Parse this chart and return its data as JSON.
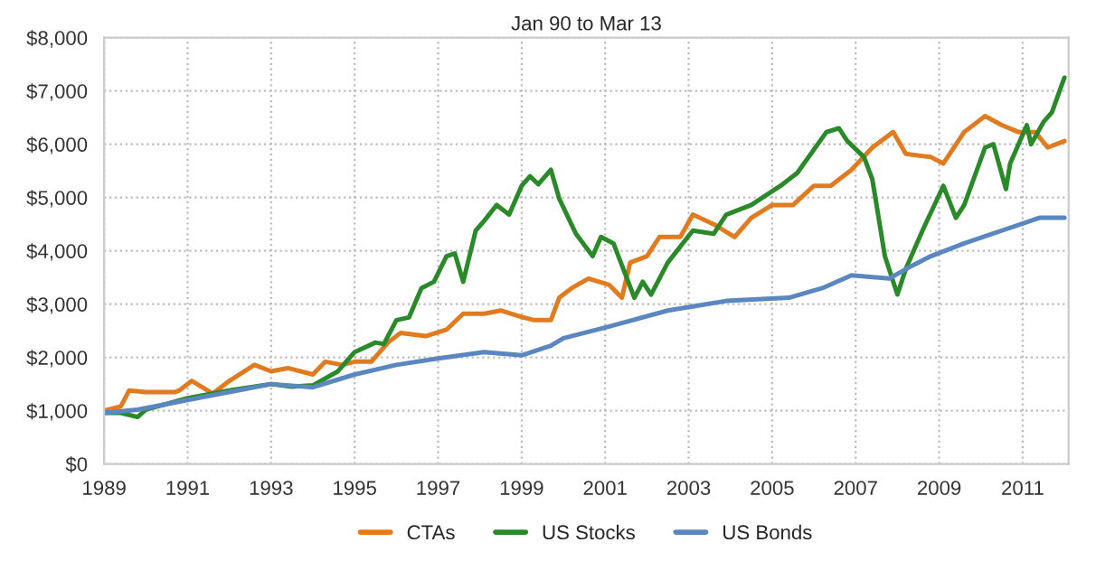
{
  "chart_data": {
    "type": "line",
    "title": "Jan 90 to Mar 13",
    "xlim": [
      1989,
      2012.1
    ],
    "xticks": [
      1989,
      1991,
      1993,
      1995,
      1997,
      1999,
      2001,
      2003,
      2005,
      2007,
      2009,
      2011
    ],
    "ylim": [
      0,
      8000
    ],
    "yticks": [
      {
        "value": 0,
        "label": "$0"
      },
      {
        "value": 1000,
        "label": "$1,000"
      },
      {
        "value": 2000,
        "label": "$2,000"
      },
      {
        "value": 3000,
        "label": "$3,000"
      },
      {
        "value": 4000,
        "label": "$4,000"
      },
      {
        "value": 5000,
        "label": "$5,000"
      },
      {
        "value": 6000,
        "label": "$6,000"
      },
      {
        "value": 7000,
        "label": "$7,000"
      },
      {
        "value": 8000,
        "label": "$8,000"
      }
    ],
    "grid": true,
    "legend": "bottom",
    "line_style": "solid",
    "marker": "none",
    "series": [
      {
        "name": "CTAs",
        "color": "#e07b20",
        "x": [
          1989,
          1989.4,
          1989.6,
          1990.0,
          1990.7,
          1990.8,
          1991.1,
          1991.6,
          1992.0,
          1992.6,
          1993.0,
          1993.4,
          1994.0,
          1994.3,
          1994.7,
          1995.0,
          1995.4,
          1995.8,
          1996.1,
          1996.7,
          1997.2,
          1997.6,
          1998.1,
          1998.5,
          1999.0,
          1999.3,
          1999.7,
          1999.9,
          2000.2,
          2000.6,
          2001.1,
          2001.4,
          2001.6,
          2002.0,
          2002.3,
          2002.8,
          2003.1,
          2003.6,
          2004.1,
          2004.5,
          2005.0,
          2005.5,
          2006.0,
          2006.4,
          2006.9,
          2007.4,
          2007.9,
          2008.2,
          2008.8,
          2009.1,
          2009.6,
          2010.1,
          2010.5,
          2010.9,
          2011.3,
          2011.6,
          2012.0
        ],
        "values": [
          1000,
          1080,
          1380,
          1350,
          1350,
          1380,
          1560,
          1320,
          1560,
          1860,
          1740,
          1800,
          1680,
          1920,
          1860,
          1920,
          1920,
          2280,
          2460,
          2400,
          2520,
          2820,
          2820,
          2880,
          2760,
          2700,
          2700,
          3120,
          3300,
          3480,
          3360,
          3120,
          3780,
          3900,
          4260,
          4260,
          4680,
          4500,
          4260,
          4620,
          4860,
          4860,
          5220,
          5220,
          5520,
          5940,
          6230,
          5820,
          5760,
          5640,
          6230,
          6530,
          6360,
          6230,
          6230,
          5940,
          6060
        ]
      },
      {
        "name": "US Stocks",
        "color": "#2a8a2a",
        "x": [
          1989,
          1989.4,
          1989.8,
          1990.0,
          1991.0,
          1992.0,
          1993.0,
          1993.5,
          1994.0,
          1994.6,
          1995.0,
          1995.5,
          1995.7,
          1996.0,
          1996.3,
          1996.6,
          1996.9,
          1997.2,
          1997.4,
          1997.6,
          1997.9,
          1998.1,
          1998.4,
          1998.7,
          1999.0,
          1999.2,
          1999.4,
          1999.7,
          1999.9,
          2000.3,
          2000.7,
          2000.9,
          2001.2,
          2001.7,
          2001.9,
          2002.1,
          2002.5,
          2003.1,
          2003.6,
          2003.9,
          2004.5,
          2005.2,
          2005.6,
          2006.3,
          2006.6,
          2006.8,
          2007.2,
          2007.4,
          2007.7,
          2008.0,
          2008.2,
          2008.6,
          2009.1,
          2009.4,
          2009.6,
          2010.1,
          2010.3,
          2010.6,
          2010.7,
          2011.1,
          2011.2,
          2011.5,
          2011.7,
          2012.0
        ],
        "values": [
          960,
          960,
          880,
          1020,
          1235,
          1380,
          1500,
          1450,
          1475,
          1740,
          2100,
          2280,
          2250,
          2700,
          2750,
          3300,
          3420,
          3900,
          3950,
          3420,
          4380,
          4560,
          4860,
          4680,
          5220,
          5400,
          5250,
          5520,
          4980,
          4320,
          3900,
          4260,
          4140,
          3120,
          3420,
          3180,
          3780,
          4380,
          4320,
          4680,
          4860,
          5220,
          5460,
          6230,
          6300,
          6060,
          5760,
          5340,
          3900,
          3180,
          3660,
          4380,
          5220,
          4620,
          4860,
          5940,
          6000,
          5160,
          5640,
          6360,
          6000,
          6420,
          6600,
          7250
        ]
      },
      {
        "name": "US Bonds",
        "color": "#5b87c0",
        "x": [
          1989,
          1989.8,
          1991.0,
          1993.0,
          1994.0,
          1995.0,
          1996.0,
          1997.0,
          1998.1,
          1999.0,
          1999.7,
          2000.0,
          2001.1,
          2002.5,
          2003.9,
          2005.4,
          2006.2,
          2006.9,
          2007.8,
          2008.3,
          2008.8,
          2009.6,
          2010.5,
          2011.4,
          2012.0
        ],
        "values": [
          960,
          1020,
          1200,
          1500,
          1440,
          1680,
          1860,
          1980,
          2100,
          2040,
          2220,
          2360,
          2580,
          2880,
          3060,
          3120,
          3300,
          3540,
          3480,
          3700,
          3900,
          4140,
          4380,
          4620,
          4620
        ]
      }
    ]
  }
}
